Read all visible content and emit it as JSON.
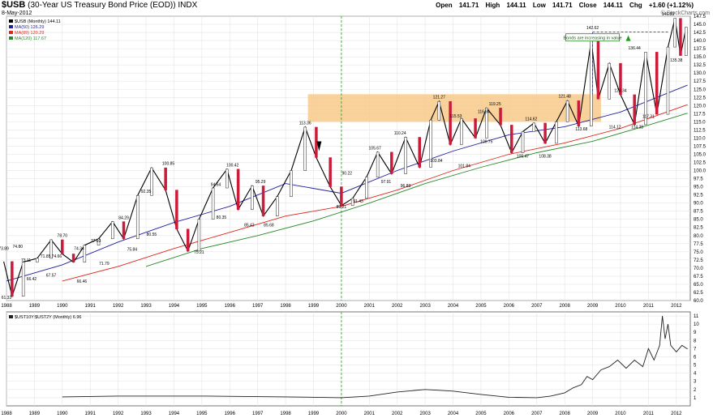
{
  "header": {
    "symbol": "$USB",
    "description": "(30-Year US Treasury Bond Price (EOD))",
    "exchange": "INDX",
    "date": "8-May-2012",
    "open_label": "Open",
    "open": "141.71",
    "high_label": "High",
    "high": "144.11",
    "low_label": "Low",
    "low": "141.71",
    "close_label": "Close",
    "close": "144.11",
    "chg_label": "Chg",
    "chg": "+1.60 (+1.12%)",
    "watermark": "© StockCharts.com"
  },
  "chart_data": [
    {
      "type": "line",
      "title": "$USB (Monthly) 144.11",
      "ylim": [
        60,
        147.5
      ],
      "xlim": [
        1988,
        2012.5
      ],
      "x_ticks": [
        "1988",
        "1989",
        "1990",
        "1991",
        "1992",
        "1993",
        "1994",
        "1995",
        "1996",
        "1997",
        "1998",
        "1999",
        "2000",
        "2001",
        "2002",
        "2003",
        "2004",
        "2005",
        "2006",
        "2007",
        "2008",
        "2009",
        "2010",
        "2011",
        "2012"
      ],
      "y_ticks": [
        60.0,
        62.5,
        65.0,
        67.5,
        70.0,
        72.5,
        75.0,
        77.5,
        80.0,
        82.5,
        85.0,
        87.5,
        90.0,
        92.5,
        95.0,
        97.5,
        100.0,
        102.5,
        105.0,
        107.5,
        110.0,
        112.5,
        115.0,
        117.5,
        120.0,
        122.5,
        125.0,
        127.5,
        130.0,
        132.5,
        135.0,
        137.5,
        140.0,
        142.5,
        145.0,
        147.5
      ],
      "grid": true,
      "legend": [
        {
          "name": "$USB (Monthly) 144.11",
          "color": "#000000"
        },
        {
          "name": "MA(50) 126.29",
          "color": "#1f1f9e"
        },
        {
          "name": "MA(89) 120.29",
          "color": "#e0261b"
        },
        {
          "name": "MA(120) 117.67",
          "color": "#2a8a2a"
        }
      ],
      "series": [
        {
          "name": "$USB (Monthly) 144.11",
          "x": [
            1987.9,
            1988.2,
            1988.6,
            1989.1,
            1989.6,
            1990.0,
            1990.4,
            1990.8,
            1991.3,
            1991.8,
            1992.2,
            1992.7,
            1993.2,
            1993.7,
            1994.1,
            1994.5,
            1994.9,
            1995.4,
            1995.9,
            1996.3,
            1996.8,
            1997.2,
            1997.7,
            1998.2,
            1998.7,
            1999.1,
            1999.6,
            2000.0,
            2000.4,
            2000.9,
            2001.3,
            2001.8,
            2002.3,
            2002.8,
            2003.2,
            2003.5,
            2003.9,
            2004.3,
            2004.8,
            2005.2,
            2005.7,
            2006.1,
            2006.5,
            2006.9,
            2007.3,
            2007.7,
            2008.1,
            2008.5,
            2008.95,
            2009.2,
            2009.6,
            2010.0,
            2010.5,
            2010.9,
            2011.3,
            2011.7,
            2011.95,
            2012.15,
            2012.35
          ],
          "values": [
            72.0,
            61.32,
            71.85,
            73.0,
            78.7,
            74.34,
            71.79,
            77.03,
            79.0,
            84.29,
            79.0,
            92.35,
            100.85,
            94.0,
            82.0,
            75.21,
            85.0,
            94.64,
            100.42,
            88.0,
            95.29,
            86.0,
            92.0,
            100.0,
            113.36,
            104.0,
            95.0,
            89.21,
            91.43,
            98.0,
            105.67,
            99.0,
            110.24,
            101.0,
            115.53,
            121.27,
            108.0,
            116.0,
            110.0,
            119.25,
            114.0,
            105.47,
            112.0,
            114.62,
            108.38,
            115.0,
            121.48,
            113.68,
            140.0,
            122.0,
            133.0,
            123.34,
            114.12,
            136.44,
            117.31,
            138.0,
            146.83,
            135.38,
            144.11
          ]
        },
        {
          "name": "MA(50) 126.29",
          "x": [
            1988,
            1990,
            1992,
            1994,
            1996,
            1998,
            2000,
            2002,
            2004,
            2006,
            2008,
            2010,
            2012.4
          ],
          "values": [
            66.0,
            71.0,
            78.0,
            84.0,
            89.0,
            96.0,
            93.0,
            100.0,
            106.0,
            111.0,
            113.5,
            118.0,
            126.29
          ]
        },
        {
          "name": "MA(89) 120.29",
          "x": [
            1990,
            1992,
            1994,
            1996,
            1998,
            2000,
            2002,
            2004,
            2006,
            2008,
            2010,
            2012.4
          ],
          "values": [
            66.0,
            70.5,
            76.0,
            81.0,
            86.0,
            89.0,
            94.0,
            100.0,
            105.0,
            108.5,
            113.0,
            120.29
          ]
        },
        {
          "name": "MA(120) 117.67",
          "x": [
            1993,
            1995,
            1997,
            1999,
            2001,
            2003,
            2005,
            2007,
            2009,
            2011,
            2012.4
          ],
          "values": [
            70.5,
            76.0,
            80.0,
            84.5,
            90.0,
            96.0,
            101.0,
            105.5,
            109.0,
            114.0,
            117.67
          ]
        }
      ],
      "annotations": [
        {
          "text": "73.89",
          "x": 1987.9,
          "y": 75.6
        },
        {
          "text": "74.80",
          "x": 1988.4,
          "y": 76.2
        },
        {
          "text": "73.11",
          "x": 1988.7,
          "y": 72.0
        },
        {
          "text": "61.32",
          "x": 1988.0,
          "y": 60.5
        },
        {
          "text": "66.42",
          "x": 1988.9,
          "y": 66.2
        },
        {
          "text": "71.85",
          "x": 1989.4,
          "y": 73.2
        },
        {
          "text": "67.57",
          "x": 1989.6,
          "y": 67.4
        },
        {
          "text": "78.70",
          "x": 1990.0,
          "y": 79.6
        },
        {
          "text": "74.66",
          "x": 1989.8,
          "y": 73.2
        },
        {
          "text": "74.34",
          "x": 1990.6,
          "y": 75.6
        },
        {
          "text": "66.46",
          "x": 1990.7,
          "y": 65.5
        },
        {
          "text": "77.03",
          "x": 1991.2,
          "y": 78.0
        },
        {
          "text": "71.79",
          "x": 1991.5,
          "y": 71.0
        },
        {
          "text": "84.29",
          "x": 1992.2,
          "y": 85.1
        },
        {
          "text": "75.84",
          "x": 1992.5,
          "y": 75.3
        },
        {
          "text": "80.55",
          "x": 1993.2,
          "y": 80.0
        },
        {
          "text": "92.35",
          "x": 1993.0,
          "y": 93.2
        },
        {
          "text": "100.85",
          "x": 1993.8,
          "y": 101.8
        },
        {
          "text": "75.21",
          "x": 1994.9,
          "y": 74.4
        },
        {
          "text": "80.35",
          "x": 1995.7,
          "y": 85.2
        },
        {
          "text": "94.64",
          "x": 1995.5,
          "y": 95.3
        },
        {
          "text": "100.42",
          "x": 1996.1,
          "y": 101.2
        },
        {
          "text": "85.43",
          "x": 1996.7,
          "y": 82.8
        },
        {
          "text": "95.29",
          "x": 1997.1,
          "y": 96.1
        },
        {
          "text": "85.68",
          "x": 1997.4,
          "y": 82.8
        },
        {
          "text": "113.36",
          "x": 1998.7,
          "y": 114.2
        },
        {
          "text": "90.22",
          "x": 2000.2,
          "y": 98.8
        },
        {
          "text": "89.21",
          "x": 2000.0,
          "y": 88.4
        },
        {
          "text": "91.43",
          "x": 2000.6,
          "y": 90.2
        },
        {
          "text": "105.67",
          "x": 2001.2,
          "y": 106.5
        },
        {
          "text": "97.91",
          "x": 2001.6,
          "y": 96.2
        },
        {
          "text": "110.24",
          "x": 2002.1,
          "y": 111.1
        },
        {
          "text": "96.83",
          "x": 2002.3,
          "y": 94.9
        },
        {
          "text": "121.27",
          "x": 2003.5,
          "y": 122.2
        },
        {
          "text": "103.84",
          "x": 2003.4,
          "y": 102.6
        },
        {
          "text": "115.53",
          "x": 2004.1,
          "y": 116.3
        },
        {
          "text": "101.84",
          "x": 2004.4,
          "y": 101.0
        },
        {
          "text": "116.84",
          "x": 2005.1,
          "y": 117.7
        },
        {
          "text": "119.25",
          "x": 2005.5,
          "y": 120.1
        },
        {
          "text": "109.75",
          "x": 2005.2,
          "y": 108.5
        },
        {
          "text": "114.62",
          "x": 2006.8,
          "y": 115.5
        },
        {
          "text": "105.47",
          "x": 2006.5,
          "y": 104.0
        },
        {
          "text": "108.38",
          "x": 2007.3,
          "y": 104.0
        },
        {
          "text": "121.48",
          "x": 2008.0,
          "y": 122.4
        },
        {
          "text": "113.68",
          "x": 2008.6,
          "y": 112.3
        },
        {
          "text": "142.62",
          "x": 2009.0,
          "y": 143.5
        },
        {
          "text": "123.34",
          "x": 2010.0,
          "y": 124.2
        },
        {
          "text": "114.12",
          "x": 2009.8,
          "y": 113.0
        },
        {
          "text": "136.44",
          "x": 2010.5,
          "y": 137.3
        },
        {
          "text": "114.38",
          "x": 2010.6,
          "y": 113.0
        },
        {
          "text": "117.31",
          "x": 2011.0,
          "y": 116.2
        },
        {
          "text": "146.83",
          "x": 2011.7,
          "y": 147.7
        },
        {
          "text": "135.38",
          "x": 2012.0,
          "y": 133.6
        },
        {
          "text": "Bonds are increasing in value",
          "x": 2009.0,
          "y": 140.6
        }
      ],
      "shaded_band": {
        "x": [
          1998.8,
          2009.3
        ],
        "y": [
          115.0,
          123.5
        ],
        "color": "#f7c98a"
      },
      "resistance_line": {
        "x": [
          2009.0,
          2011.7
        ],
        "y": 142.62,
        "color": "#3a3ad0"
      }
    },
    {
      "type": "line",
      "title": "$UST10Y:$UST2Y (Monthly) 6.96",
      "ylim": [
        0,
        11.5
      ],
      "y_ticks": [
        1,
        2,
        3,
        4,
        5,
        6,
        7,
        8,
        9,
        10,
        11
      ],
      "grid": true,
      "series": [
        {
          "name": "$UST10Y:$UST2Y (Monthly) 6.96",
          "x": [
            1990.0,
            1992.0,
            1995.0,
            1998.0,
            2000.0,
            2001.0,
            2002.0,
            2003.0,
            2004.0,
            2005.0,
            2006.0,
            2007.0,
            2007.5,
            2008.0,
            2008.3,
            2008.6,
            2008.8,
            2009.0,
            2009.3,
            2009.6,
            2009.9,
            2010.2,
            2010.5,
            2010.8,
            2011.0,
            2011.2,
            2011.4,
            2011.5,
            2011.6,
            2011.7,
            2011.8,
            2012.0,
            2012.2,
            2012.4
          ],
          "values": [
            1.1,
            1.2,
            1.2,
            1.1,
            1.0,
            1.2,
            1.7,
            2.0,
            1.8,
            1.4,
            1.05,
            1.0,
            1.2,
            1.6,
            2.2,
            2.6,
            3.6,
            3.2,
            4.4,
            4.8,
            5.6,
            4.6,
            5.6,
            4.8,
            7.0,
            5.6,
            7.4,
            11.0,
            8.2,
            10.0,
            7.4,
            6.6,
            7.4,
            6.96
          ]
        }
      ]
    }
  ]
}
